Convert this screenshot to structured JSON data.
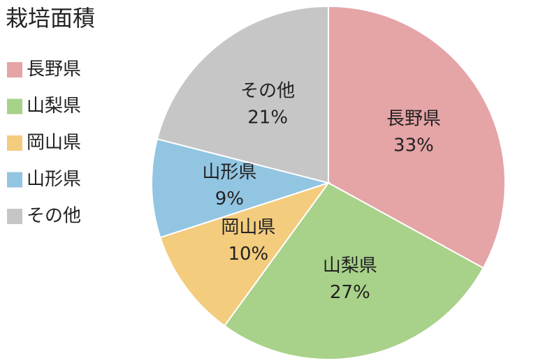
{
  "chart_data": {
    "type": "pie",
    "title": "栽培面積",
    "categories": [
      "長野県",
      "山梨県",
      "岡山県",
      "山形県",
      "その他"
    ],
    "values": [
      33,
      27,
      10,
      9,
      21
    ],
    "value_labels": [
      "33%",
      "27%",
      "10%",
      "9%",
      "21%"
    ],
    "colors": [
      "#e5a4a6",
      "#a8d18a",
      "#f3cc7e",
      "#92c5e2",
      "#c6c6c6"
    ],
    "legend": "left"
  }
}
